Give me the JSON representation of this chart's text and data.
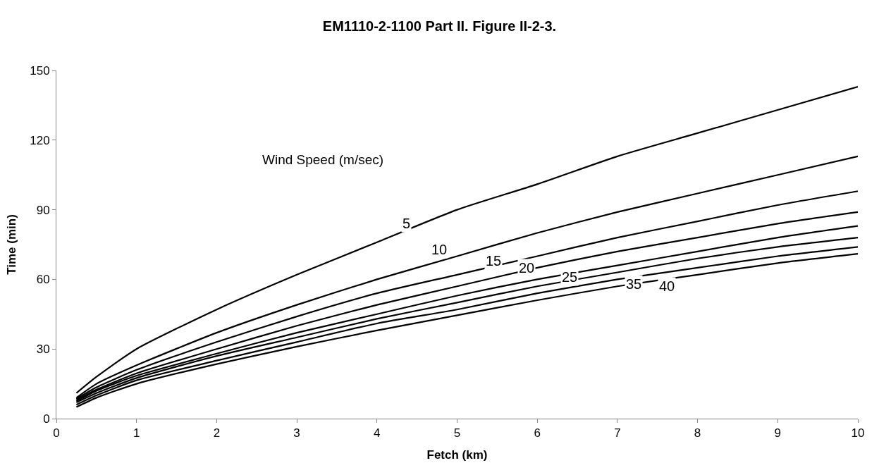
{
  "chart_data": {
    "type": "line",
    "title": "EM1110-2-1100 Part II. Figure II-2-3.",
    "xlabel": "Fetch (km)",
    "ylabel": "Time (min)",
    "x": [
      0.25,
      0.5,
      1,
      2,
      3,
      4,
      5,
      6,
      7,
      8,
      9,
      10
    ],
    "series": [
      {
        "color": "#000000",
        "values": [
          11,
          18,
          30,
          47,
          62,
          76,
          90,
          101,
          113,
          123,
          133,
          143
        ]
      },
      {
        "color": "#000000",
        "values": [
          9,
          15,
          23,
          37,
          49,
          60,
          70,
          80,
          89,
          97,
          105,
          113
        ]
      },
      {
        "color": "#000000",
        "values": [
          8.5,
          13.5,
          21,
          33,
          44,
          54,
          62,
          70,
          78,
          85,
          92,
          98
        ]
      },
      {
        "color": "#000000",
        "values": [
          8,
          12.5,
          19.5,
          30,
          40,
          49,
          57,
          65,
          72,
          78,
          84,
          89
        ]
      },
      {
        "color": "#000000",
        "values": [
          7.5,
          12,
          18.5,
          28,
          37,
          45,
          53,
          60,
          66,
          72,
          78,
          83
        ]
      },
      {
        "color": "#000000",
        "values": [
          7,
          11,
          17.5,
          27,
          35,
          43,
          50,
          57,
          63,
          69,
          74,
          78
        ]
      },
      {
        "color": "#000000",
        "values": [
          6,
          10,
          16.5,
          25,
          33,
          41,
          47,
          54,
          60,
          65,
          70,
          74
        ]
      },
      {
        "color": "#000000",
        "values": [
          5,
          9,
          15,
          23.5,
          31,
          38,
          44.5,
          51,
          57,
          62,
          67,
          71
        ]
      }
    ],
    "annotations": [
      "Wind Speed (m/sec)",
      {
        "text": "5",
        "x": 4.37,
        "y": 84
      },
      {
        "text": "10",
        "x": 4.78,
        "y": 73
      },
      {
        "text": "15",
        "x": 5.45,
        "y": 68
      },
      {
        "text": "20",
        "x": 5.87,
        "y": 65
      },
      {
        "text": "25",
        "x": 6.4,
        "y": 61
      },
      {
        "text": "35",
        "x": 7.2,
        "y": 58
      },
      {
        "text": "40",
        "x": 7.62,
        "y": 57
      }
    ],
    "xlim": [
      0,
      10
    ],
    "xticks": [
      0,
      1,
      2,
      3,
      4,
      5,
      6,
      7,
      8,
      9,
      10
    ],
    "ylim": [
      0,
      150
    ],
    "yticks": [
      0,
      30,
      60,
      90,
      120,
      150
    ],
    "marker": "none",
    "line_style": "solid"
  }
}
